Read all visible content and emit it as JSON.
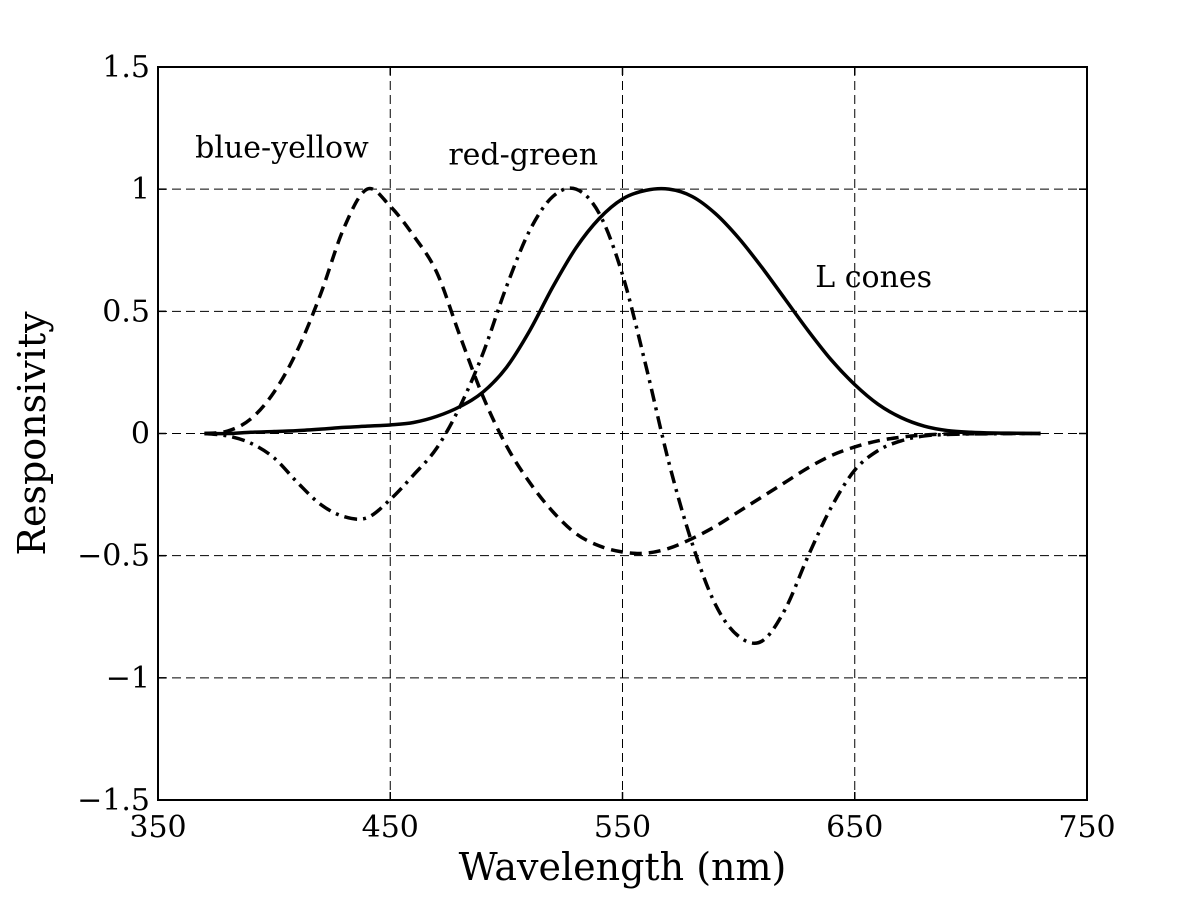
{
  "chart_data": {
    "type": "line",
    "title": "",
    "xlabel": "Wavelength (nm)",
    "ylabel": "Responsivity",
    "xlim": [
      350,
      750
    ],
    "ylim": [
      -1.5,
      1.5
    ],
    "xticks": [
      350,
      450,
      550,
      650,
      750
    ],
    "yticks": [
      -1.5,
      -1,
      -0.5,
      0,
      0.5,
      1,
      1.5
    ],
    "xtick_labels": [
      "350",
      "450",
      "550",
      "650",
      "750"
    ],
    "ytick_labels": [
      "−1.5",
      "−1",
      "−0.5",
      "0",
      "0.5",
      "1",
      "1.5"
    ],
    "grid": true,
    "legend": "none",
    "annotations": [
      {
        "text": "blue-yellow",
        "x": 366,
        "y": 1.13
      },
      {
        "text": "red-green",
        "x": 475,
        "y": 1.1
      },
      {
        "text": "L cones",
        "x": 633,
        "y": 0.6
      }
    ],
    "series": [
      {
        "style": "solid",
        "color": "#000000",
        "x": [
          370,
          380,
          390,
          400,
          410,
          420,
          430,
          440,
          450,
          460,
          470,
          480,
          490,
          500,
          510,
          520,
          530,
          540,
          550,
          560,
          570,
          580,
          590,
          600,
          610,
          620,
          630,
          640,
          650,
          660,
          670,
          680,
          690,
          700,
          710,
          720,
          730
        ],
        "y": [
          0,
          0,
          0.005,
          0.008,
          0.012,
          0.018,
          0.025,
          0.03,
          0.035,
          0.045,
          0.07,
          0.11,
          0.17,
          0.27,
          0.42,
          0.6,
          0.76,
          0.88,
          0.96,
          0.995,
          1.0,
          0.97,
          0.9,
          0.8,
          0.68,
          0.55,
          0.42,
          0.3,
          0.2,
          0.12,
          0.065,
          0.03,
          0.012,
          0.005,
          0.002,
          0.001,
          0
        ]
      },
      {
        "style": "dashed",
        "color": "#000000",
        "x": [
          370,
          380,
          390,
          400,
          410,
          420,
          430,
          440,
          450,
          460,
          470,
          480,
          490,
          500,
          510,
          520,
          530,
          540,
          550,
          560,
          570,
          580,
          590,
          600,
          610,
          620,
          630,
          640,
          650,
          660,
          670,
          680,
          690,
          700,
          710,
          720,
          730
        ],
        "y": [
          0,
          0.01,
          0.06,
          0.17,
          0.34,
          0.57,
          0.84,
          1.0,
          0.93,
          0.81,
          0.66,
          0.4,
          0.15,
          -0.05,
          -0.2,
          -0.32,
          -0.41,
          -0.46,
          -0.485,
          -0.49,
          -0.47,
          -0.43,
          -0.38,
          -0.32,
          -0.26,
          -0.2,
          -0.14,
          -0.09,
          -0.055,
          -0.03,
          -0.015,
          -0.006,
          -0.002,
          -0.001,
          0,
          0,
          0
        ]
      },
      {
        "style": "dash-dot",
        "color": "#000000",
        "x": [
          370,
          380,
          390,
          400,
          410,
          420,
          430,
          440,
          450,
          460,
          470,
          480,
          490,
          500,
          510,
          520,
          530,
          540,
          550,
          560,
          570,
          580,
          590,
          600,
          610,
          620,
          630,
          640,
          650,
          660,
          670,
          680,
          690,
          700,
          710,
          720,
          730
        ],
        "y": [
          0,
          -0.01,
          -0.04,
          -0.1,
          -0.2,
          -0.29,
          -0.34,
          -0.345,
          -0.27,
          -0.17,
          -0.06,
          0.11,
          0.33,
          0.6,
          0.83,
          0.97,
          1.0,
          0.9,
          0.65,
          0.28,
          -0.12,
          -0.45,
          -0.7,
          -0.83,
          -0.85,
          -0.72,
          -0.5,
          -0.3,
          -0.15,
          -0.07,
          -0.03,
          -0.01,
          -0.004,
          -0.002,
          -0.001,
          0,
          0
        ]
      }
    ]
  }
}
